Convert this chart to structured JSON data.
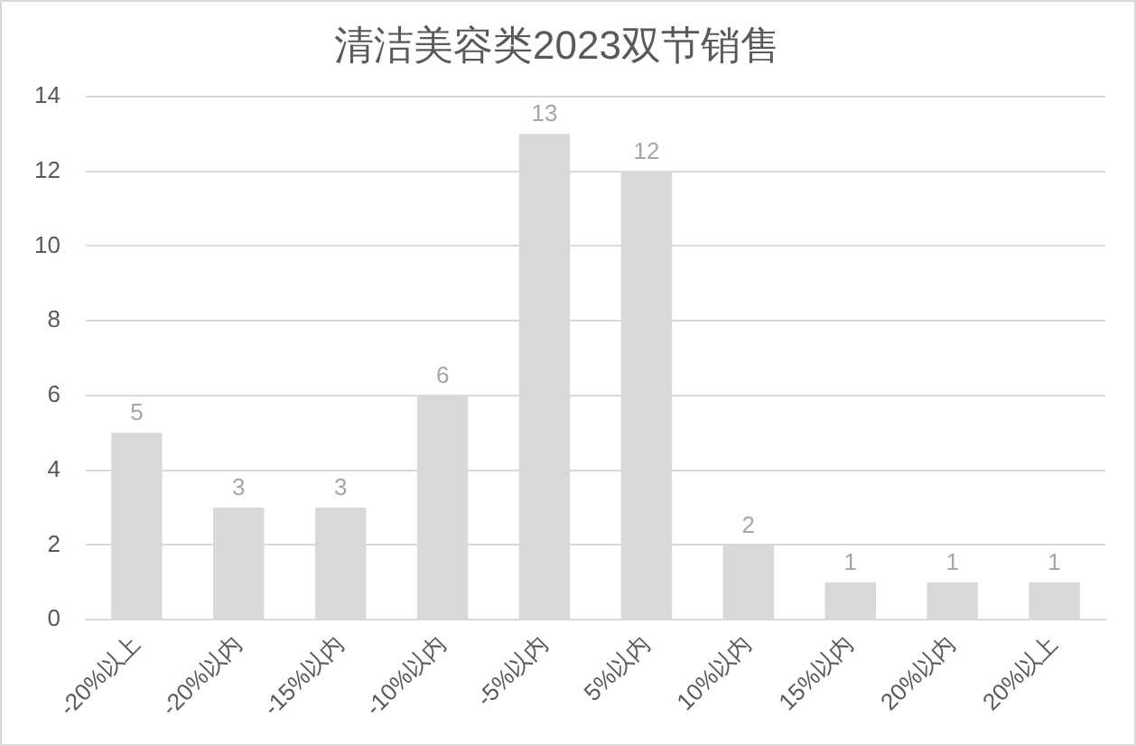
{
  "chart_data": {
    "type": "bar",
    "title": "清洁美容类2023双节销售",
    "categories": [
      "-20%以上",
      "-20%以内",
      "-15%以内",
      "-10%以内",
      "-5%以内",
      "5%以内",
      "10%以内",
      "15%以内",
      "20%以内",
      "20%以上"
    ],
    "values": [
      5,
      3,
      3,
      6,
      13,
      12,
      2,
      1,
      1,
      1
    ],
    "color": "#d9d9d9",
    "ylim": [
      0,
      14
    ],
    "yticks": [
      0,
      2,
      4,
      6,
      8,
      10,
      12,
      14
    ],
    "grid": "y",
    "data_labels": true,
    "legend": false
  }
}
